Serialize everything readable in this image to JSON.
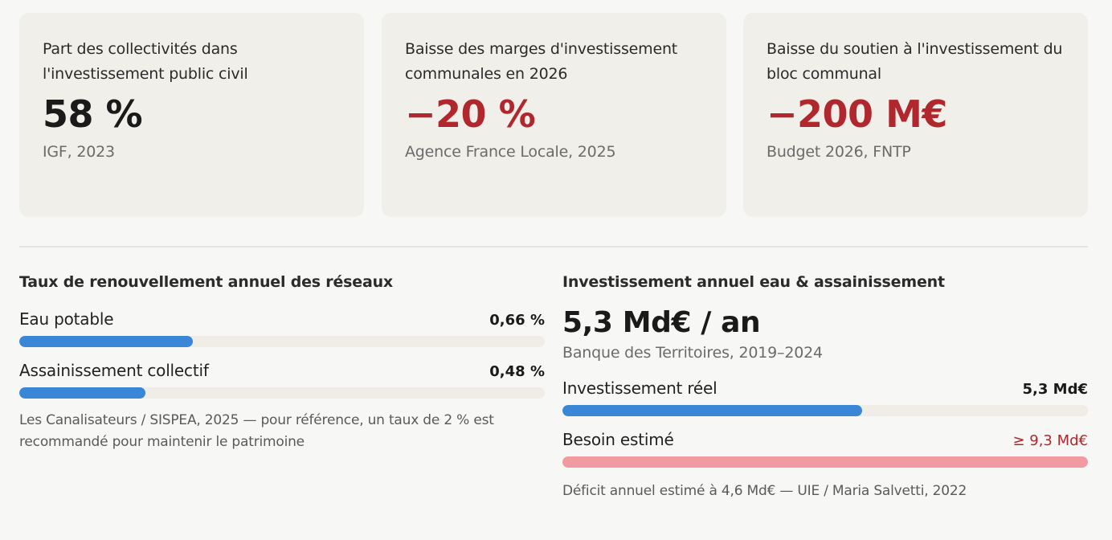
{
  "cards": [
    {
      "label": "Part des collectivités dans l'investissement public civil",
      "value": "58 %",
      "source": "IGF, 2023"
    },
    {
      "label": "Baisse des marges d'investissement communales en 2026",
      "value": "−20 %",
      "source": "Agence France Locale, 2025"
    },
    {
      "label": "Baisse du soutien à l'investissement du bloc communal",
      "value": "−200 M€",
      "source": "Budget 2026, FNTP"
    }
  ],
  "renewal": {
    "title": "Taux de renouvellement annuel des réseaux",
    "rows": [
      {
        "label": "Eau potable",
        "value": "0,66 %",
        "fraction": 0.33
      },
      {
        "label": "Assainissement collectif",
        "value": "0,48 %",
        "fraction": 0.24
      }
    ],
    "note": "Les Canalisateurs / SISPEA, 2025 — pour référence, un taux de 2 % est recommandé pour maintenir le patrimoine"
  },
  "investment": {
    "title": "Investissement annuel eau & assainissement",
    "big_value": "5,3 Md€ / an",
    "big_source": "Banque des Territoires, 2019–2024",
    "rows": [
      {
        "label": "Investissement réel",
        "value": "5,3 Md€",
        "fraction": 0.57
      },
      {
        "label": "Besoin estimé",
        "value": "≥ 9,3 Md€",
        "fraction": 1.0
      }
    ],
    "note": "Déficit annuel estimé à 4,6 Md€ — UIE / Maria Salvetti, 2022"
  },
  "colors": {
    "accent_red": "#b0272d",
    "bar_blue": "#3a87d8",
    "bar_pink": "#f19aa1"
  }
}
